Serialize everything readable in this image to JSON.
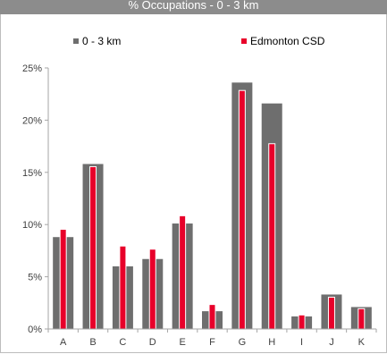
{
  "chart_data": {
    "type": "bar",
    "title": "% Occupations - 0 - 3 km",
    "xlabel": "",
    "ylabel": "",
    "categories": [
      "A",
      "B",
      "C",
      "D",
      "E",
      "F",
      "G",
      "H",
      "I",
      "J",
      "K"
    ],
    "series": [
      {
        "name": "0 - 3 km",
        "color": "#6e6e6e",
        "values": [
          8.8,
          15.8,
          6.0,
          6.7,
          10.1,
          1.7,
          23.6,
          21.6,
          1.2,
          3.3,
          2.1
        ]
      },
      {
        "name": "Edmonton CSD",
        "color": "#e8002a",
        "values": [
          9.5,
          15.5,
          7.9,
          7.6,
          10.8,
          2.3,
          22.8,
          17.7,
          1.3,
          3.0,
          1.9
        ]
      }
    ],
    "ylim": [
      0,
      25
    ],
    "yticks": [
      "0%",
      "5%",
      "10%",
      "15%",
      "20%",
      "25%"
    ],
    "grid": false,
    "legend": "top"
  }
}
